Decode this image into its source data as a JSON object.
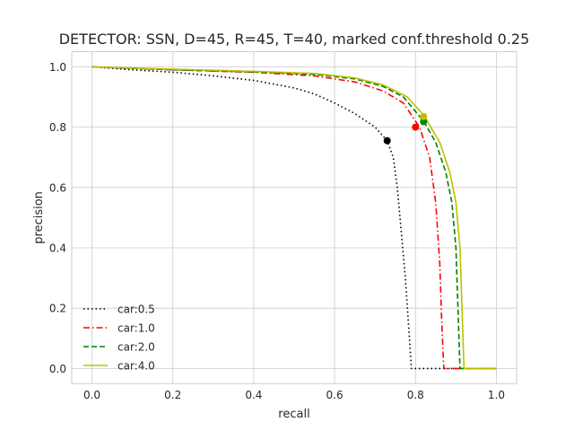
{
  "chart_data": {
    "type": "line",
    "title": "DETECTOR: SSN, D=45, R=45, T=40, marked conf.threshold 0.25",
    "xlabel": "recall",
    "ylabel": "precision",
    "xlim": [
      -0.05,
      1.05
    ],
    "ylim": [
      -0.05,
      1.05
    ],
    "xticks": [
      "0.0",
      "0.2",
      "0.4",
      "0.6",
      "0.8",
      "1.0"
    ],
    "yticks": [
      "0.0",
      "0.2",
      "0.4",
      "0.6",
      "0.8",
      "1.0"
    ],
    "grid": true,
    "legend_position": "lower-left",
    "series": [
      {
        "name": "car:0.5",
        "color": "#000000",
        "style": "dotted",
        "x": [
          0.0,
          0.1,
          0.2,
          0.3,
          0.4,
          0.5,
          0.55,
          0.6,
          0.65,
          0.7,
          0.73,
          0.745,
          0.755,
          0.765,
          0.775,
          0.785,
          0.79,
          0.8,
          0.85,
          0.9,
          1.0
        ],
        "y": [
          1.0,
          0.99,
          0.982,
          0.97,
          0.955,
          0.93,
          0.91,
          0.88,
          0.845,
          0.8,
          0.755,
          0.7,
          0.6,
          0.45,
          0.3,
          0.1,
          0.0,
          0.0,
          0.0,
          0.0,
          0.0
        ],
        "marker": {
          "x": 0.73,
          "y": 0.755
        }
      },
      {
        "name": "car:1.0",
        "color": "#ff0000",
        "style": "dashdot",
        "x": [
          0.0,
          0.2,
          0.4,
          0.55,
          0.65,
          0.72,
          0.77,
          0.81,
          0.835,
          0.85,
          0.86,
          0.865,
          0.87,
          0.9,
          1.0
        ],
        "y": [
          1.0,
          0.99,
          0.982,
          0.97,
          0.95,
          0.92,
          0.88,
          0.8,
          0.7,
          0.55,
          0.35,
          0.15,
          0.0,
          0.0,
          0.0
        ],
        "marker": {
          "x": 0.8,
          "y": 0.8
        }
      },
      {
        "name": "car:2.0",
        "color": "#008000",
        "style": "dashed",
        "x": [
          0.0,
          0.2,
          0.4,
          0.55,
          0.65,
          0.72,
          0.77,
          0.82,
          0.85,
          0.875,
          0.89,
          0.9,
          0.905,
          0.91,
          0.93,
          1.0
        ],
        "y": [
          1.0,
          0.99,
          0.983,
          0.975,
          0.96,
          0.935,
          0.9,
          0.82,
          0.75,
          0.65,
          0.55,
          0.4,
          0.2,
          0.0,
          0.0,
          0.0
        ],
        "marker": {
          "x": 0.82,
          "y": 0.818
        }
      },
      {
        "name": "car:4.0",
        "color": "#bfbf00",
        "style": "solid",
        "x": [
          0.0,
          0.2,
          0.4,
          0.55,
          0.65,
          0.72,
          0.78,
          0.82,
          0.86,
          0.885,
          0.9,
          0.91,
          0.915,
          0.92,
          0.95,
          1.0
        ],
        "y": [
          1.0,
          0.992,
          0.985,
          0.978,
          0.963,
          0.94,
          0.9,
          0.84,
          0.75,
          0.65,
          0.55,
          0.4,
          0.2,
          0.0,
          0.0,
          0.0
        ],
        "marker": {
          "x": 0.82,
          "y": 0.835
        }
      }
    ]
  }
}
